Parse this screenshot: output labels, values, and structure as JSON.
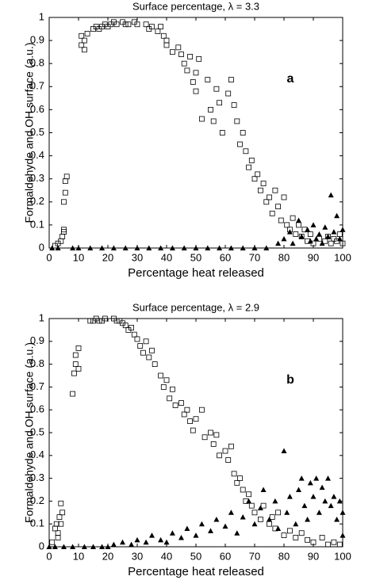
{
  "chart_data": [
    {
      "type": "scatter",
      "title": "Surface percentage, λ = 3.3",
      "xlabel": "Percentage heat released",
      "ylabel": "Formaldehyde and OH surface (a.u.)",
      "annotation": "a",
      "xlim": [
        0,
        100
      ],
      "ylim": [
        0,
        1
      ],
      "xticks": [
        0,
        10,
        20,
        30,
        40,
        50,
        60,
        70,
        80,
        90,
        100
      ],
      "yticks": [
        0,
        0.1,
        0.2,
        0.3,
        0.4,
        0.5,
        0.6,
        0.7,
        0.8,
        0.9,
        1
      ],
      "series": [
        {
          "marker": "square",
          "color": "#000000",
          "x": [
            4,
            4.5,
            5,
            5,
            5.5,
            5.5,
            6,
            5,
            3,
            2,
            11,
            11,
            12,
            12,
            13,
            15,
            16,
            17,
            18,
            19,
            20,
            21,
            22,
            23,
            25,
            26,
            27,
            29,
            30,
            33,
            34,
            35,
            37,
            38,
            39,
            40,
            40,
            42,
            44,
            45,
            46,
            47,
            48,
            49,
            50,
            50,
            51,
            52,
            54,
            55,
            56,
            57,
            58,
            59,
            61,
            62,
            63,
            64,
            65,
            66,
            67,
            68,
            69,
            70,
            71,
            72,
            73,
            74,
            75,
            76,
            77,
            78,
            79,
            80,
            81,
            82,
            83,
            84,
            85,
            86,
            87,
            88,
            89,
            90,
            92,
            94,
            95,
            96,
            97,
            98,
            99,
            100
          ],
          "y": [
            0.03,
            0.05,
            0.08,
            0.2,
            0.24,
            0.29,
            0.31,
            0.07,
            0.02,
            0.01,
            0.88,
            0.92,
            0.9,
            0.86,
            0.93,
            0.95,
            0.96,
            0.95,
            0.96,
            0.97,
            0.96,
            0.97,
            0.98,
            0.97,
            0.98,
            0.97,
            0.97,
            0.98,
            0.97,
            0.97,
            0.95,
            0.96,
            0.94,
            0.96,
            0.92,
            0.9,
            0.88,
            0.85,
            0.87,
            0.84,
            0.8,
            0.77,
            0.83,
            0.72,
            0.76,
            0.68,
            0.82,
            0.56,
            0.73,
            0.6,
            0.55,
            0.69,
            0.63,
            0.5,
            0.67,
            0.73,
            0.62,
            0.55,
            0.45,
            0.5,
            0.42,
            0.35,
            0.38,
            0.3,
            0.32,
            0.25,
            0.28,
            0.2,
            0.22,
            0.15,
            0.25,
            0.18,
            0.12,
            0.22,
            0.1,
            0.08,
            0.13,
            0.06,
            0.1,
            0.05,
            0.08,
            0.03,
            0.06,
            0.02,
            0.04,
            0.03,
            0.05,
            0.02,
            0.04,
            0.03,
            0.06,
            0.02
          ]
        },
        {
          "marker": "triangle",
          "color": "#000000",
          "x": [
            1,
            3,
            8,
            10,
            14,
            18,
            22,
            26,
            30,
            34,
            38,
            42,
            46,
            50,
            54,
            58,
            62,
            66,
            70,
            74,
            78,
            80,
            82,
            83,
            85,
            86,
            88,
            89,
            90,
            91,
            92,
            93,
            94,
            95,
            96,
            97,
            98,
            99,
            100
          ],
          "y": [
            0,
            0,
            0,
            0,
            0,
            0,
            0,
            0,
            0,
            0,
            0,
            0,
            0,
            0,
            0,
            0,
            0,
            0,
            0,
            0,
            0.02,
            0.04,
            0.07,
            0.02,
            0.12,
            0.05,
            0.08,
            0.03,
            0.1,
            0.04,
            0.06,
            0.02,
            0.09,
            0.05,
            0.23,
            0.07,
            0.14,
            0.04,
            0.08
          ]
        }
      ]
    },
    {
      "type": "scatter",
      "title": "Surface percentage, λ = 2.9",
      "xlabel": "Percentage heat released",
      "ylabel": "Formaldehyde and OH surface (a.u.)",
      "annotation": "b",
      "xlim": [
        0,
        100
      ],
      "ylim": [
        0,
        1
      ],
      "xticks": [
        0,
        10,
        20,
        30,
        40,
        50,
        60,
        70,
        80,
        90,
        100
      ],
      "yticks": [
        0,
        0.1,
        0.2,
        0.3,
        0.4,
        0.5,
        0.6,
        0.7,
        0.8,
        0.9,
        1
      ],
      "series": [
        {
          "marker": "square",
          "color": "#000000",
          "x": [
            1,
            2,
            2.5,
            3,
            3.5,
            4,
            4,
            4.5,
            3,
            8,
            8.5,
            9,
            9,
            10,
            10,
            14,
            15,
            16,
            17,
            18,
            19,
            22,
            23,
            24,
            25,
            26,
            27,
            28,
            29,
            30,
            31,
            32,
            33,
            34,
            35,
            36,
            38,
            39,
            40,
            41,
            42,
            43,
            45,
            46,
            47,
            48,
            49,
            50,
            52,
            53,
            55,
            56,
            57,
            58,
            60,
            61,
            62,
            63,
            64,
            65,
            66,
            67,
            68,
            69,
            70,
            72,
            73,
            75,
            76,
            77,
            78,
            80,
            82,
            84,
            86,
            88,
            90,
            93,
            95,
            97,
            99
          ],
          "y": [
            0.02,
            0.08,
            0.1,
            0.04,
            0.13,
            0.19,
            0.1,
            0.15,
            0.06,
            0.67,
            0.76,
            0.8,
            0.84,
            0.78,
            0.87,
            0.99,
            0.99,
            1,
            0.99,
            0.99,
            1,
            1,
            0.99,
            0.99,
            0.98,
            0.97,
            0.95,
            0.96,
            0.93,
            0.91,
            0.88,
            0.85,
            0.9,
            0.83,
            0.86,
            0.8,
            0.75,
            0.7,
            0.73,
            0.65,
            0.69,
            0.62,
            0.63,
            0.58,
            0.6,
            0.55,
            0.51,
            0.56,
            0.6,
            0.48,
            0.5,
            0.45,
            0.49,
            0.4,
            0.42,
            0.38,
            0.44,
            0.32,
            0.28,
            0.3,
            0.25,
            0.2,
            0.23,
            0.18,
            0.15,
            0.12,
            0.18,
            0.1,
            0.13,
            0.08,
            0.15,
            0.05,
            0.07,
            0.04,
            0.06,
            0.03,
            0.02,
            0.04,
            0.01,
            0.02,
            0.01
          ]
        },
        {
          "marker": "triangle",
          "color": "#000000",
          "x": [
            0,
            2,
            5,
            8,
            12,
            15,
            18,
            20,
            22,
            25,
            28,
            30,
            33,
            35,
            38,
            40,
            42,
            45,
            47,
            50,
            52,
            55,
            57,
            60,
            62,
            64,
            66,
            68,
            70,
            72,
            73,
            75,
            77,
            78,
            80,
            81,
            82,
            84,
            85,
            86,
            87,
            88,
            89,
            90,
            91,
            92,
            93,
            94,
            95,
            96,
            97,
            98,
            99,
            100,
            100
          ],
          "y": [
            0,
            0,
            0,
            0,
            0,
            0,
            0,
            0,
            0.01,
            0.02,
            0.01,
            0.03,
            0.02,
            0.05,
            0.03,
            0.02,
            0.06,
            0.04,
            0.08,
            0.05,
            0.1,
            0.07,
            0.12,
            0.09,
            0.15,
            0.06,
            0.13,
            0.2,
            0.1,
            0.17,
            0.25,
            0.12,
            0.2,
            0.08,
            0.42,
            0.15,
            0.22,
            0.1,
            0.25,
            0.3,
            0.18,
            0.12,
            0.28,
            0.22,
            0.3,
            0.15,
            0.26,
            0.2,
            0.3,
            0.18,
            0.22,
            0.12,
            0.2,
            0.15,
            0.05
          ]
        }
      ]
    }
  ]
}
